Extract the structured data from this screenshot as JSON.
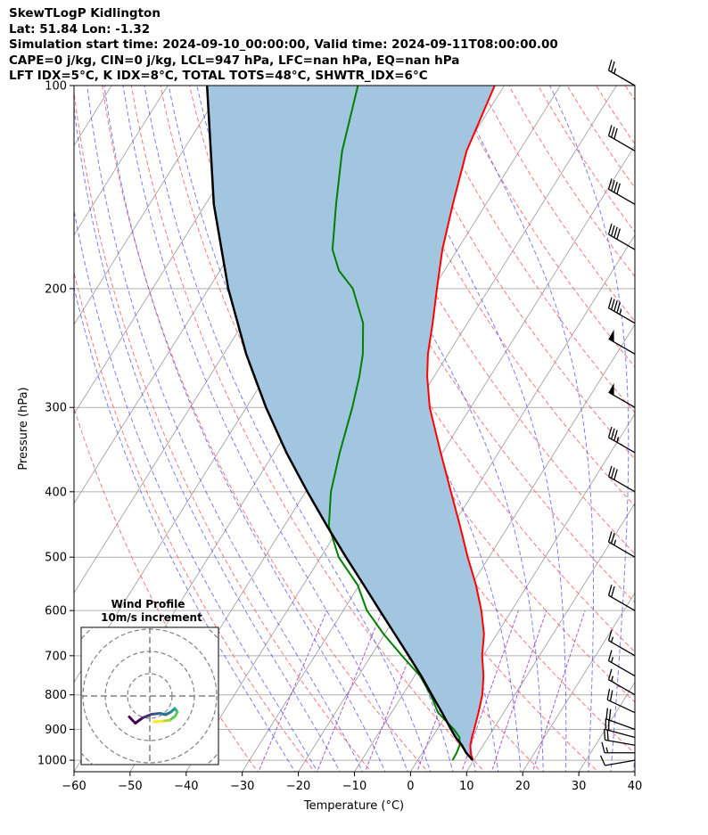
{
  "header": {
    "line1": "SkewTLogP Kidlington",
    "line2": "Lat: 51.84   Lon: -1.32",
    "line3": "Simulation start time: 2024-09-10_00:00:00, Valid time: 2024-09-11T08:00:00.00",
    "line4": "CAPE=0 j/kg, CIN=0 j/kg, LCL=947 hPa, LFC=nan hPa, EQ=nan hPa",
    "line5": "LFT IDX=5°C, K IDX=8°C, TOTAL TOTS=48°C, SHWTR_IDX=6°C"
  },
  "chart_data": {
    "type": "line",
    "xlabel": "Temperature (°C)",
    "ylabel": "Pressure (hPa)",
    "xlim": [
      -60,
      40
    ],
    "ylim": [
      1040,
      100
    ],
    "y_scale": "log",
    "skew": true,
    "grid": true,
    "x_ticks": [
      "−60",
      "−50",
      "−40",
      "−30",
      "−20",
      "−10",
      "0",
      "10",
      "20",
      "30",
      "40"
    ],
    "y_ticks": [
      {
        "p": 100,
        "label": "100"
      },
      {
        "p": 200,
        "label": "200"
      },
      {
        "p": 300,
        "label": "300"
      },
      {
        "p": 400,
        "label": "400"
      },
      {
        "p": 500,
        "label": "500"
      },
      {
        "p": 600,
        "label": "600"
      },
      {
        "p": 700,
        "label": "700"
      },
      {
        "p": 800,
        "label": "800"
      },
      {
        "p": 900,
        "label": "900"
      },
      {
        "p": 1000,
        "label": "1000"
      }
    ],
    "colors": {
      "temperature": "#ff0000",
      "dewpoint": "#008000",
      "parcel": "#000000",
      "shade": "#a3c6e0",
      "dry_adiabat": "#ff5555",
      "moist_adiabat": "#4444ff",
      "mixing_ratio": "#9933cc",
      "isotherm": "#999999"
    },
    "series": [
      {
        "key": "temperature",
        "pressure": [
          1000,
          975,
          950,
          925,
          900,
          850,
          800,
          750,
          700,
          650,
          600,
          550,
          500,
          450,
          400,
          350,
          300,
          270,
          250,
          225,
          200,
          175,
          150,
          125,
          100
        ],
        "temp": [
          9.8,
          8.6,
          7.7,
          7.1,
          6.6,
          5.5,
          4.2,
          2.3,
          -0.2,
          -2.3,
          -5.4,
          -9.2,
          -13.8,
          -18.6,
          -24.1,
          -30.3,
          -37.3,
          -41.2,
          -43.6,
          -46.2,
          -49.3,
          -52.7,
          -55.9,
          -59.4,
          -61.7
        ]
      },
      {
        "key": "dewpoint",
        "pressure": [
          1000,
          975,
          950,
          925,
          900,
          850,
          800,
          750,
          700,
          650,
          600,
          550,
          500,
          450,
          400,
          350,
          300,
          270,
          250,
          225,
          200,
          188,
          175,
          150,
          125,
          100
        ],
        "temp": [
          6.2,
          6.1,
          5.8,
          4.9,
          3.0,
          -1.7,
          -5.0,
          -9.0,
          -14.5,
          -20.2,
          -25.8,
          -30.3,
          -36.8,
          -42.0,
          -45.5,
          -48.3,
          -51.1,
          -53.3,
          -55.2,
          -58.6,
          -64.3,
          -68.8,
          -72.3,
          -76.7,
          -81.6,
          -86.1
        ]
      },
      {
        "key": "parcel",
        "pressure": [
          1000,
          975,
          950,
          925,
          900,
          850,
          800,
          750,
          700,
          650,
          600,
          550,
          500,
          450,
          400,
          350,
          300,
          250,
          200,
          150,
          100
        ],
        "temp": [
          9.8,
          7.8,
          6.2,
          4.2,
          2.5,
          -1.0,
          -4.8,
          -8.8,
          -13.3,
          -18.2,
          -23.5,
          -29.2,
          -35.5,
          -42.3,
          -49.7,
          -57.8,
          -66.5,
          -76.0,
          -86.5,
          -98.5,
          -113.0
        ]
      }
    ],
    "wind_barbs": [
      {
        "p": 1000,
        "speed_kt": 10,
        "dir": 260
      },
      {
        "p": 975,
        "speed_kt": 15,
        "dir": 270
      },
      {
        "p": 950,
        "speed_kt": 20,
        "dir": 280
      },
      {
        "p": 925,
        "speed_kt": 20,
        "dir": 285
      },
      {
        "p": 900,
        "speed_kt": 20,
        "dir": 290
      },
      {
        "p": 850,
        "speed_kt": 20,
        "dir": 295
      },
      {
        "p": 800,
        "speed_kt": 15,
        "dir": 300
      },
      {
        "p": 750,
        "speed_kt": 15,
        "dir": 300
      },
      {
        "p": 700,
        "speed_kt": 15,
        "dir": 300
      },
      {
        "p": 600,
        "speed_kt": 20,
        "dir": 300
      },
      {
        "p": 500,
        "speed_kt": 25,
        "dir": 300
      },
      {
        "p": 400,
        "speed_kt": 30,
        "dir": 300
      },
      {
        "p": 350,
        "speed_kt": 35,
        "dir": 300
      },
      {
        "p": 300,
        "speed_kt": 50,
        "dir": 300
      },
      {
        "p": 250,
        "speed_kt": 50,
        "dir": 300
      },
      {
        "p": 225,
        "speed_kt": 45,
        "dir": 300
      },
      {
        "p": 175,
        "speed_kt": 40,
        "dir": 300
      },
      {
        "p": 150,
        "speed_kt": 40,
        "dir": 300
      },
      {
        "p": 125,
        "speed_kt": 30,
        "dir": 300
      },
      {
        "p": 100,
        "speed_kt": 25,
        "dir": 300
      }
    ],
    "hodograph": {
      "title_line1": "Wind Profile",
      "title_line2": "10m/s increment",
      "ring_spacing_ms": 10,
      "u": [
        -9.2,
        -6.5,
        -3.2,
        0.8,
        4.6,
        7.1,
        9.6,
        11.2,
        12.4,
        11.3,
        8.9,
        5.6,
        1.9
      ],
      "v": [
        -9.4,
        -12.2,
        -9.8,
        -8.2,
        -7.8,
        -8.4,
        -7.1,
        -5.6,
        -7.2,
        -9.1,
        -10.9,
        -11.3,
        -11.6
      ]
    }
  }
}
